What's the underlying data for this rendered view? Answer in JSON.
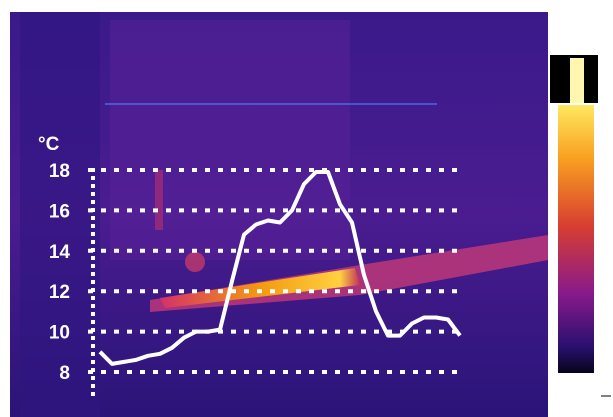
{
  "chart_data": {
    "type": "line",
    "unit": "°C",
    "series": [
      {
        "color": "#ffffff",
        "values": [
          9.0,
          8.4,
          8.5,
          8.6,
          8.8,
          8.9,
          9.2,
          9.7,
          10.0,
          10.0,
          10.1,
          12.5,
          14.8,
          15.3,
          15.5,
          15.4,
          16.0,
          17.3,
          17.9,
          17.9,
          16.3,
          15.4,
          12.8,
          11.0,
          9.8,
          9.8,
          10.4,
          10.7,
          10.7,
          10.6,
          9.8
        ]
      }
    ],
    "ylim": [
      8,
      18
    ],
    "yticks": [
      8,
      10,
      12,
      14,
      16,
      18
    ],
    "grid": true
  }
}
